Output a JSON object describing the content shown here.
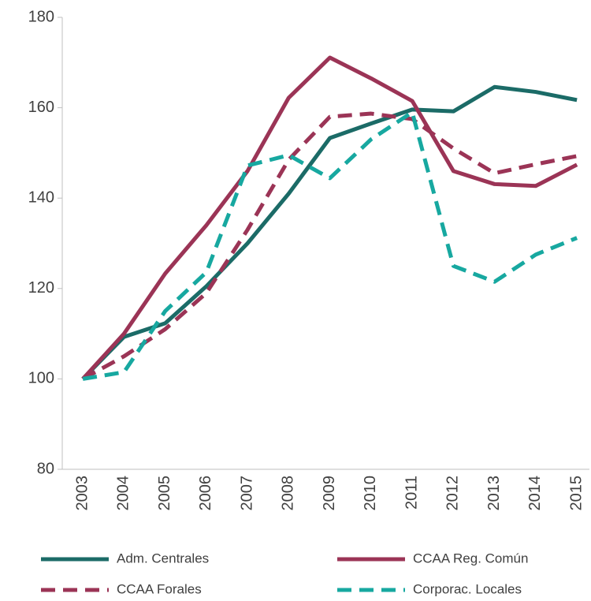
{
  "chart_data": {
    "type": "line",
    "categories": [
      "2003",
      "2004",
      "2005",
      "2006",
      "2007",
      "2008",
      "2009",
      "2010",
      "2011",
      "2012",
      "2013",
      "2014",
      "2015"
    ],
    "series": [
      {
        "name": "Adm. Centrales",
        "color": "#1b6b67",
        "dashed": false,
        "values": [
          100,
          109.3,
          112.3,
          120.5,
          130,
          141,
          153.3,
          156.5,
          159.6,
          159.2,
          164.6,
          163.5,
          161.7
        ]
      },
      {
        "name": "CCAA Reg. Común",
        "color": "#9b3456",
        "dashed": false,
        "values": [
          100,
          110,
          123.3,
          134,
          146,
          162.2,
          171.1,
          166.5,
          161.5,
          146,
          143.1,
          142.7,
          147.4
        ]
      },
      {
        "name": "CCAA Forales",
        "color": "#9b3456",
        "dashed": true,
        "values": [
          100,
          105,
          111,
          119,
          133,
          148.5,
          158,
          158.7,
          157.5,
          151,
          145.5,
          147.5,
          149.3
        ]
      },
      {
        "name": "Corporac. Locales",
        "color": "#17a8a0",
        "dashed": true,
        "values": [
          100,
          101.5,
          115,
          123.6,
          147.2,
          149.5,
          144.4,
          153,
          159,
          125,
          121.5,
          127.5,
          131.2
        ]
      }
    ],
    "ylim": [
      80,
      180
    ],
    "yticks": [
      80,
      100,
      120,
      140,
      160,
      180
    ],
    "grid": false
  }
}
